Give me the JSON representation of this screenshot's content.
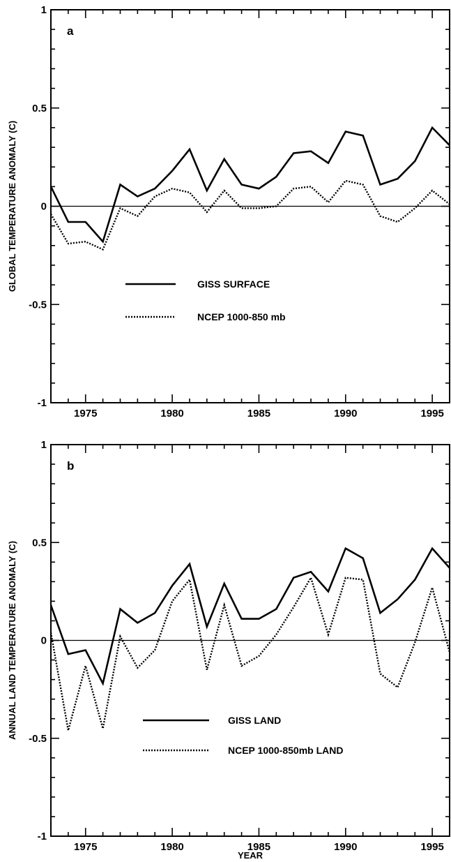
{
  "chart_data": [
    {
      "type": "line",
      "panel_label": "a",
      "ylabel": "GLOBAL TEMPERATURE ANOMALY (C)",
      "xlabel": "",
      "xlim": [
        1973,
        1996
      ],
      "ylim": [
        -1,
        1
      ],
      "x_ticks": [
        1975,
        1980,
        1985,
        1990,
        1995
      ],
      "y_ticks": [
        -1,
        -0.5,
        0,
        0.5,
        1
      ],
      "y_tick_labels": [
        "-1",
        "-0.5",
        "0",
        "0.5",
        "1"
      ],
      "zero_line": true,
      "grid": false,
      "legend_position": "lower-center",
      "x": [
        1973,
        1974,
        1975,
        1976,
        1977,
        1978,
        1979,
        1980,
        1981,
        1982,
        1983,
        1984,
        1985,
        1986,
        1987,
        1988,
        1989,
        1990,
        1991,
        1992,
        1993,
        1994,
        1995,
        1996
      ],
      "series": [
        {
          "name": "GISS SURFACE",
          "style": "solid",
          "values": [
            0.1,
            -0.08,
            -0.08,
            -0.18,
            0.11,
            0.05,
            0.09,
            0.18,
            0.29,
            0.08,
            0.24,
            0.11,
            0.09,
            0.15,
            0.27,
            0.28,
            0.22,
            0.38,
            0.36,
            0.11,
            0.14,
            0.23,
            0.4,
            0.31
          ]
        },
        {
          "name": "NCEP 1000-850 mb",
          "style": "dotted",
          "values": [
            -0.04,
            -0.19,
            -0.18,
            -0.22,
            -0.01,
            -0.05,
            0.05,
            0.09,
            0.07,
            -0.03,
            0.08,
            -0.01,
            -0.01,
            0.0,
            0.09,
            0.1,
            0.02,
            0.13,
            0.11,
            -0.05,
            -0.08,
            -0.01,
            0.08,
            0.01
          ]
        }
      ]
    },
    {
      "type": "line",
      "panel_label": "b",
      "ylabel": "ANNUAL LAND TEMPERATURE ANOMALY (C)",
      "xlabel": "YEAR",
      "xlim": [
        1973,
        1996
      ],
      "ylim": [
        -1,
        1
      ],
      "x_ticks": [
        1975,
        1980,
        1985,
        1990,
        1995
      ],
      "y_ticks": [
        -1,
        -0.5,
        0,
        0.5,
        1
      ],
      "y_tick_labels": [
        "-1",
        "-0.5",
        "0",
        "0.5",
        "1"
      ],
      "zero_line": true,
      "grid": false,
      "legend_position": "lower-center",
      "x": [
        1973,
        1974,
        1975,
        1976,
        1977,
        1978,
        1979,
        1980,
        1981,
        1982,
        1983,
        1984,
        1985,
        1986,
        1987,
        1988,
        1989,
        1990,
        1991,
        1992,
        1993,
        1994,
        1995,
        1996
      ],
      "series": [
        {
          "name": "GISS LAND",
          "style": "solid",
          "values": [
            0.18,
            -0.07,
            -0.05,
            -0.22,
            0.16,
            0.09,
            0.14,
            0.28,
            0.39,
            0.07,
            0.29,
            0.11,
            0.11,
            0.16,
            0.32,
            0.35,
            0.25,
            0.47,
            0.42,
            0.14,
            0.21,
            0.31,
            0.47,
            0.37
          ]
        },
        {
          "name": "NCEP 1000-850mb LAND",
          "style": "dotted",
          "values": [
            0.04,
            -0.46,
            -0.13,
            -0.45,
            0.02,
            -0.14,
            -0.05,
            0.2,
            0.31,
            -0.15,
            0.18,
            -0.13,
            -0.08,
            0.03,
            0.17,
            0.32,
            0.03,
            0.32,
            0.31,
            -0.17,
            -0.24,
            -0.01,
            0.27,
            -0.06
          ]
        }
      ]
    }
  ]
}
